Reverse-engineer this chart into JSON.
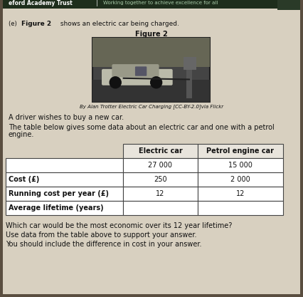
{
  "header_text_left": "eford Academy Trust",
  "header_text_right": "Working together to achieve excellence for all",
  "header_bg": "#2a3a28",
  "part_label_prefix": "(e)   ",
  "part_label_bold": "Figure 2",
  "part_label_suffix": " shows an electric car being charged.",
  "figure_title": "Figure 2",
  "photo_caption": "By Alan Trotter Electric Car Charging [CC-BY-2.0]via Flickr",
  "intro1": "A driver wishes to buy a new car.",
  "intro2_line1": "The table below gives some data about an electric car and one with a petrol",
  "intro2_line2": "engine.",
  "col_header1": "Electric car",
  "col_header2": "Petrol engine car",
  "row1_label": "",
  "row1_val1": "27 000",
  "row1_val2": "15 000",
  "row2_label": "Cost (£)",
  "row2_val1": "250",
  "row2_val2": "2 000",
  "row3_label": "Running cost per year (£)",
  "row3_val1": "12",
  "row3_val2": "12",
  "row4_label": "Average lifetime (years)",
  "row4_val1": "",
  "row4_val2": "",
  "question": "Which car would be the most economic over its 12 year lifetime?",
  "instruction1": "Use data from the table above to support your answer.",
  "instruction2": "You should include the difference in cost in your answer.",
  "outer_bg": "#5a4e40",
  "paper_bg": "#d8d0c0",
  "text_color": "#111111",
  "table_line_color": "#444444",
  "header_bar_color": "#1e2e1c"
}
